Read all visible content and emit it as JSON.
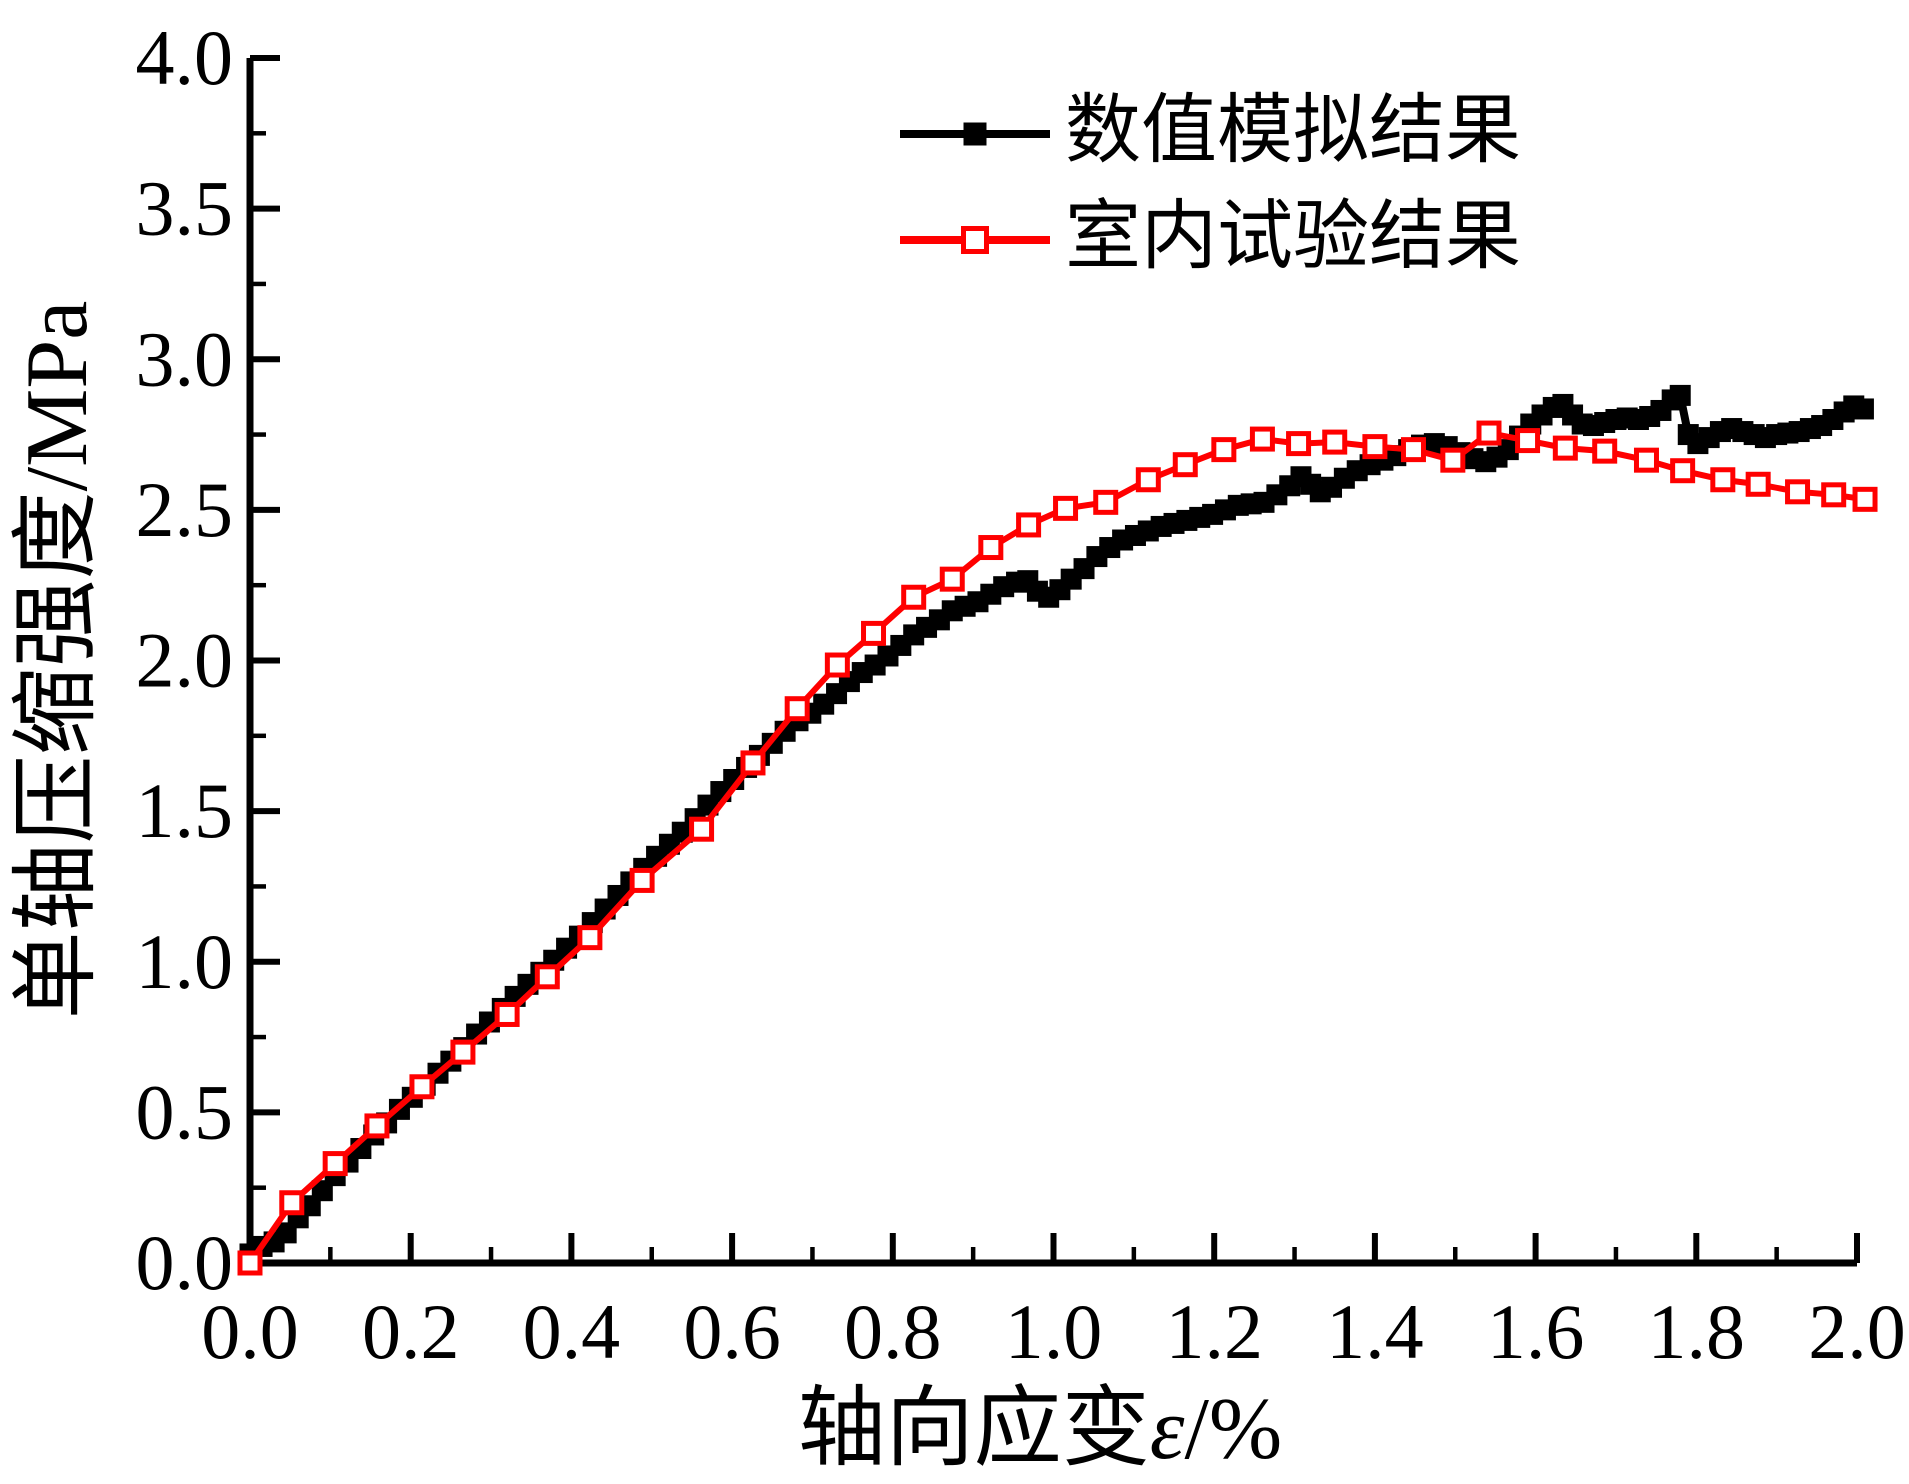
{
  "chart_data": {
    "type": "line",
    "title": "",
    "xlabel": "轴向应变ε/%",
    "xlabel_parts": {
      "prefix": "轴向应变",
      "symbol": "ε",
      "suffix": "/%"
    },
    "ylabel": "单轴压缩强度/MPa",
    "xlim": [
      0.0,
      2.0
    ],
    "ylim": [
      0.0,
      4.0
    ],
    "grid": false,
    "legend_position": "upper-center",
    "x_major_ticks": [
      0.0,
      0.2,
      0.4,
      0.6,
      0.8,
      1.0,
      1.2,
      1.4,
      1.6,
      1.8,
      2.0
    ],
    "x_tick_labels": [
      "0.0",
      "0.2",
      "0.4",
      "0.6",
      "0.8",
      "1.0",
      "1.2",
      "1.4",
      "1.6",
      "1.8",
      "2.0"
    ],
    "x_minor_tick_step": 0.1,
    "y_major_ticks": [
      0.0,
      0.5,
      1.0,
      1.5,
      2.0,
      2.5,
      3.0,
      3.5,
      4.0
    ],
    "y_tick_labels": [
      "0.0",
      "0.5",
      "1.0",
      "1.5",
      "2.0",
      "2.5",
      "3.0",
      "3.5",
      "4.0"
    ],
    "y_minor_tick_step": 0.25,
    "series": [
      {
        "name": "数值模拟结果",
        "color": "#000000",
        "marker": "filled-square",
        "marker_size": 21,
        "line_width": 8,
        "points": [
          [
            0.0,
            0.03
          ],
          [
            0.015,
            0.055
          ],
          [
            0.03,
            0.07
          ],
          [
            0.045,
            0.1
          ],
          [
            0.06,
            0.15
          ],
          [
            0.075,
            0.19
          ],
          [
            0.09,
            0.24
          ],
          [
            0.106,
            0.29
          ],
          [
            0.122,
            0.335
          ],
          [
            0.138,
            0.38
          ],
          [
            0.154,
            0.425
          ],
          [
            0.17,
            0.465
          ],
          [
            0.186,
            0.51
          ],
          [
            0.202,
            0.55
          ],
          [
            0.218,
            0.59
          ],
          [
            0.234,
            0.63
          ],
          [
            0.25,
            0.67
          ],
          [
            0.266,
            0.715
          ],
          [
            0.282,
            0.76
          ],
          [
            0.298,
            0.8
          ],
          [
            0.314,
            0.845
          ],
          [
            0.33,
            0.885
          ],
          [
            0.346,
            0.925
          ],
          [
            0.362,
            0.965
          ],
          [
            0.378,
            1.005
          ],
          [
            0.394,
            1.045
          ],
          [
            0.41,
            1.085
          ],
          [
            0.426,
            1.13
          ],
          [
            0.442,
            1.175
          ],
          [
            0.458,
            1.22
          ],
          [
            0.474,
            1.265
          ],
          [
            0.49,
            1.31
          ],
          [
            0.506,
            1.35
          ],
          [
            0.522,
            1.39
          ],
          [
            0.538,
            1.43
          ],
          [
            0.554,
            1.475
          ],
          [
            0.57,
            1.52
          ],
          [
            0.586,
            1.565
          ],
          [
            0.602,
            1.605
          ],
          [
            0.618,
            1.645
          ],
          [
            0.634,
            1.685
          ],
          [
            0.65,
            1.725
          ],
          [
            0.666,
            1.765
          ],
          [
            0.682,
            1.8
          ],
          [
            0.698,
            1.825
          ],
          [
            0.714,
            1.855
          ],
          [
            0.73,
            1.89
          ],
          [
            0.746,
            1.93
          ],
          [
            0.762,
            1.96
          ],
          [
            0.778,
            1.985
          ],
          [
            0.794,
            2.015
          ],
          [
            0.81,
            2.05
          ],
          [
            0.826,
            2.085
          ],
          [
            0.842,
            2.11
          ],
          [
            0.858,
            2.135
          ],
          [
            0.874,
            2.165
          ],
          [
            0.89,
            2.18
          ],
          [
            0.906,
            2.195
          ],
          [
            0.922,
            2.22
          ],
          [
            0.938,
            2.245
          ],
          [
            0.954,
            2.26
          ],
          [
            0.968,
            2.265
          ],
          [
            0.98,
            2.23
          ],
          [
            0.994,
            2.21
          ],
          [
            1.008,
            2.235
          ],
          [
            1.022,
            2.27
          ],
          [
            1.038,
            2.305
          ],
          [
            1.054,
            2.345
          ],
          [
            1.07,
            2.375
          ],
          [
            1.086,
            2.4
          ],
          [
            1.102,
            2.415
          ],
          [
            1.118,
            2.43
          ],
          [
            1.134,
            2.445
          ],
          [
            1.15,
            2.455
          ],
          [
            1.166,
            2.465
          ],
          [
            1.182,
            2.475
          ],
          [
            1.198,
            2.485
          ],
          [
            1.214,
            2.5
          ],
          [
            1.23,
            2.515
          ],
          [
            1.246,
            2.52
          ],
          [
            1.262,
            2.525
          ],
          [
            1.278,
            2.55
          ],
          [
            1.294,
            2.58
          ],
          [
            1.308,
            2.61
          ],
          [
            1.32,
            2.585
          ],
          [
            1.332,
            2.56
          ],
          [
            1.346,
            2.575
          ],
          [
            1.362,
            2.605
          ],
          [
            1.378,
            2.63
          ],
          [
            1.394,
            2.65
          ],
          [
            1.41,
            2.665
          ],
          [
            1.426,
            2.68
          ],
          [
            1.442,
            2.7
          ],
          [
            1.458,
            2.715
          ],
          [
            1.474,
            2.72
          ],
          [
            1.49,
            2.71
          ],
          [
            1.506,
            2.69
          ],
          [
            1.522,
            2.67
          ],
          [
            1.538,
            2.66
          ],
          [
            1.552,
            2.675
          ],
          [
            1.566,
            2.7
          ],
          [
            1.58,
            2.745
          ],
          [
            1.594,
            2.785
          ],
          [
            1.608,
            2.815
          ],
          [
            1.622,
            2.84
          ],
          [
            1.634,
            2.85
          ],
          [
            1.646,
            2.815
          ],
          [
            1.658,
            2.785
          ],
          [
            1.672,
            2.78
          ],
          [
            1.686,
            2.79
          ],
          [
            1.7,
            2.8
          ],
          [
            1.714,
            2.805
          ],
          [
            1.728,
            2.8
          ],
          [
            1.742,
            2.81
          ],
          [
            1.756,
            2.83
          ],
          [
            1.77,
            2.865
          ],
          [
            1.78,
            2.88
          ],
          [
            1.79,
            2.75
          ],
          [
            1.802,
            2.72
          ],
          [
            1.816,
            2.74
          ],
          [
            1.83,
            2.76
          ],
          [
            1.844,
            2.77
          ],
          [
            1.858,
            2.76
          ],
          [
            1.872,
            2.75
          ],
          [
            1.886,
            2.74
          ],
          [
            1.9,
            2.75
          ],
          [
            1.914,
            2.755
          ],
          [
            1.928,
            2.76
          ],
          [
            1.942,
            2.77
          ],
          [
            1.956,
            2.78
          ],
          [
            1.97,
            2.8
          ],
          [
            1.984,
            2.825
          ],
          [
            1.996,
            2.845
          ],
          [
            2.008,
            2.835
          ]
        ]
      },
      {
        "name": "室内试验结果",
        "color": "#ff0000",
        "marker": "open-square",
        "marker_size": 20,
        "line_width": 6,
        "points": [
          [
            0.0,
            0.0
          ],
          [
            0.052,
            0.2
          ],
          [
            0.106,
            0.33
          ],
          [
            0.158,
            0.455
          ],
          [
            0.214,
            0.585
          ],
          [
            0.265,
            0.7
          ],
          [
            0.32,
            0.825
          ],
          [
            0.37,
            0.95
          ],
          [
            0.423,
            1.08
          ],
          [
            0.488,
            1.27
          ],
          [
            0.562,
            1.44
          ],
          [
            0.626,
            1.66
          ],
          [
            0.681,
            1.84
          ],
          [
            0.731,
            1.985
          ],
          [
            0.776,
            2.09
          ],
          [
            0.826,
            2.21
          ],
          [
            0.874,
            2.27
          ],
          [
            0.922,
            2.375
          ],
          [
            0.969,
            2.45
          ],
          [
            1.015,
            2.505
          ],
          [
            1.065,
            2.525
          ],
          [
            1.118,
            2.6
          ],
          [
            1.164,
            2.65
          ],
          [
            1.212,
            2.7
          ],
          [
            1.26,
            2.735
          ],
          [
            1.305,
            2.72
          ],
          [
            1.35,
            2.725
          ],
          [
            1.4,
            2.71
          ],
          [
            1.448,
            2.7
          ],
          [
            1.497,
            2.665
          ],
          [
            1.542,
            2.755
          ],
          [
            1.59,
            2.73
          ],
          [
            1.637,
            2.705
          ],
          [
            1.686,
            2.695
          ],
          [
            1.738,
            2.665
          ],
          [
            1.783,
            2.63
          ],
          [
            1.833,
            2.6
          ],
          [
            1.877,
            2.585
          ],
          [
            1.926,
            2.56
          ],
          [
            1.971,
            2.55
          ],
          [
            2.01,
            2.535
          ]
        ]
      }
    ]
  },
  "legend": {
    "items": [
      {
        "label": "数值模拟结果",
        "color": "#000000",
        "marker": "filled-square"
      },
      {
        "label": "室内试验结果",
        "color": "#ff0000",
        "marker": "open-square"
      }
    ]
  },
  "colors": {
    "axis": "#000000",
    "background": "#ffffff",
    "simulation_series": "#000000",
    "experiment_series": "#ff0000"
  }
}
